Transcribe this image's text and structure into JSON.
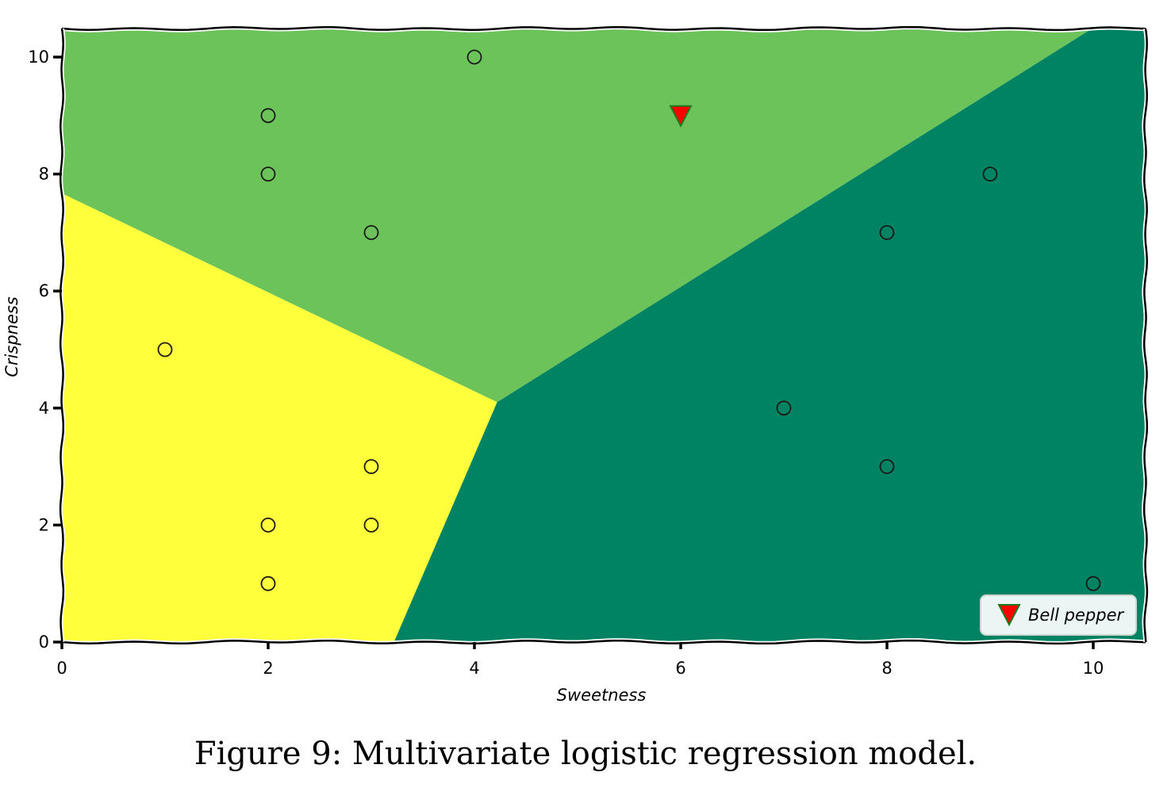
{
  "caption": "Figure 9: Multivariate logistic regression model.",
  "chart_data": {
    "type": "scatter",
    "xlabel": "Sweetness",
    "ylabel": "Crispness",
    "xlim": [
      0,
      10.5
    ],
    "ylim": [
      0,
      10.5
    ],
    "xticks": [
      0,
      2,
      4,
      6,
      8,
      10
    ],
    "yticks": [
      0,
      2,
      4,
      6,
      8,
      10
    ],
    "grid": false,
    "legend_position": "bottom-right",
    "regions": [
      {
        "color": "#6cc35a",
        "polygon": [
          [
            0,
            7.67
          ],
          [
            4.22,
            4.1
          ],
          [
            10.0,
            10.5
          ],
          [
            0,
            10.5
          ]
        ]
      },
      {
        "color": "#ffff3b",
        "polygon": [
          [
            0,
            0
          ],
          [
            3.22,
            0
          ],
          [
            4.22,
            4.1
          ],
          [
            0,
            7.67
          ]
        ]
      },
      {
        "color": "#008362",
        "polygon": [
          [
            3.22,
            0
          ],
          [
            10.5,
            0
          ],
          [
            10.5,
            10.5
          ],
          [
            10.0,
            10.5
          ],
          [
            4.22,
            4.1
          ]
        ]
      }
    ],
    "series": [
      {
        "marker": "circle",
        "points": [
          [
            4,
            10
          ],
          [
            2,
            9
          ],
          [
            2,
            8
          ],
          [
            3,
            7
          ],
          [
            1,
            5
          ],
          [
            3,
            3
          ],
          [
            2,
            2
          ],
          [
            3,
            2
          ],
          [
            2,
            1
          ],
          [
            9,
            8
          ],
          [
            8,
            7
          ],
          [
            7,
            4
          ],
          [
            8,
            3
          ],
          [
            10,
            1
          ]
        ]
      },
      {
        "name": "Bell pepper",
        "marker": "triangle-down",
        "color": "#ff0000",
        "edge_color": "#1e7a1e",
        "points": [
          [
            6,
            9
          ]
        ]
      }
    ]
  }
}
